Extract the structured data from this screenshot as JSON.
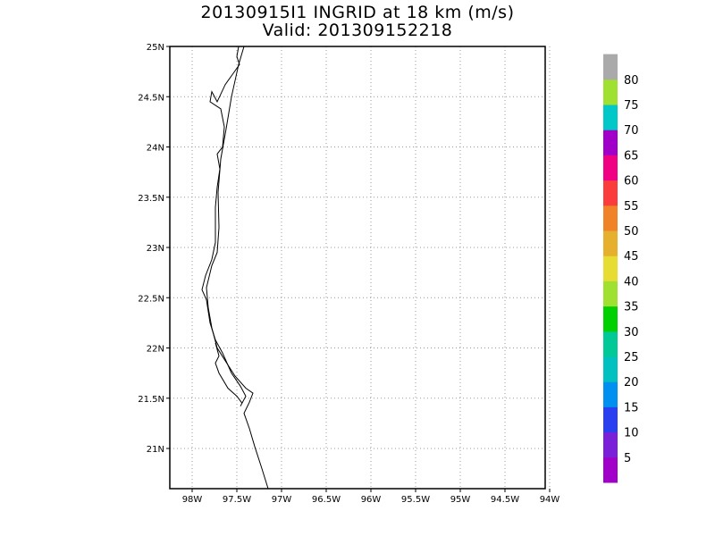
{
  "title": {
    "line1": "20130915I1 INGRID at 18 km (m/s)",
    "line2": "Valid: 201309152218"
  },
  "map": {
    "lat_range": [
      20.6,
      25.0
    ],
    "lon_range": [
      -98.25,
      -94.05
    ],
    "lat_ticks": [
      {
        "value": 25.0,
        "label": "25N"
      },
      {
        "value": 24.5,
        "label": "24.5N"
      },
      {
        "value": 24.0,
        "label": "24N"
      },
      {
        "value": 23.5,
        "label": "23.5N"
      },
      {
        "value": 23.0,
        "label": "23N"
      },
      {
        "value": 22.5,
        "label": "22.5N"
      },
      {
        "value": 22.0,
        "label": "22N"
      },
      {
        "value": 21.5,
        "label": "21.5N"
      },
      {
        "value": 21.0,
        "label": "21N"
      }
    ],
    "lon_ticks": [
      {
        "value": -98.0,
        "label": "98W"
      },
      {
        "value": -97.5,
        "label": "97.5W"
      },
      {
        "value": -97.0,
        "label": "97W"
      },
      {
        "value": -96.5,
        "label": "96.5W"
      },
      {
        "value": -96.0,
        "label": "96W"
      },
      {
        "value": -95.5,
        "label": "95.5W"
      },
      {
        "value": -95.0,
        "label": "95W"
      },
      {
        "value": -94.5,
        "label": "94.5W"
      },
      {
        "value": -94.0,
        "label": "94W"
      }
    ],
    "grid": true,
    "coastline": [
      [
        [
          -97.42,
          25.0
        ],
        [
          -97.48,
          24.82
        ],
        [
          -97.56,
          24.5
        ],
        [
          -97.62,
          24.18
        ],
        [
          -97.68,
          23.88
        ],
        [
          -97.71,
          23.55
        ],
        [
          -97.7,
          23.2
        ],
        [
          -97.72,
          22.95
        ],
        [
          -97.78,
          22.82
        ],
        [
          -97.84,
          22.6
        ],
        [
          -97.82,
          22.4
        ],
        [
          -97.78,
          22.2
        ],
        [
          -97.72,
          22.0
        ],
        [
          -97.62,
          21.86
        ],
        [
          -97.52,
          21.72
        ],
        [
          -97.4,
          21.6
        ],
        [
          -97.32,
          21.55
        ],
        [
          -97.36,
          21.46
        ],
        [
          -97.42,
          21.35
        ],
        [
          -97.36,
          21.2
        ],
        [
          -97.3,
          21.02
        ],
        [
          -97.22,
          20.8
        ],
        [
          -97.15,
          20.6
        ]
      ],
      [
        [
          -97.48,
          25.0
        ],
        [
          -97.5,
          24.9
        ],
        [
          -97.47,
          24.82
        ],
        [
          -97.55,
          24.72
        ],
        [
          -97.63,
          24.62
        ],
        [
          -97.72,
          24.45
        ],
        [
          -97.78,
          24.55
        ],
        [
          -97.8,
          24.45
        ],
        [
          -97.68,
          24.38
        ],
        [
          -97.64,
          24.2
        ],
        [
          -97.66,
          24.0
        ],
        [
          -97.72,
          23.93
        ],
        [
          -97.69,
          23.78
        ],
        [
          -97.72,
          23.6
        ],
        [
          -97.74,
          23.4
        ],
        [
          -97.74,
          23.05
        ],
        [
          -97.78,
          22.88
        ],
        [
          -97.85,
          22.72
        ],
        [
          -97.89,
          22.58
        ],
        [
          -97.84,
          22.48
        ],
        [
          -97.8,
          22.25
        ],
        [
          -97.74,
          22.08
        ],
        [
          -97.66,
          21.95
        ],
        [
          -97.56,
          21.75
        ],
        [
          -97.46,
          21.62
        ],
        [
          -97.4,
          21.52
        ],
        [
          -97.46,
          21.42
        ]
      ],
      [
        [
          -97.74,
          22.05
        ],
        [
          -97.7,
          21.92
        ],
        [
          -97.74,
          21.85
        ],
        [
          -97.7,
          21.75
        ],
        [
          -97.6,
          21.6
        ],
        [
          -97.5,
          21.52
        ],
        [
          -97.44,
          21.45
        ]
      ]
    ]
  },
  "colorbar": {
    "colors": [
      "#a000c8",
      "#7a20d8",
      "#2a40f0",
      "#0090f0",
      "#00c0c0",
      "#00c896",
      "#00d000",
      "#a0e030",
      "#e6dc32",
      "#e6af2d",
      "#f08228",
      "#fa3c3c",
      "#f00082",
      "#a000c8",
      "#00c8c8",
      "#a0e030",
      "#aaaaaa"
    ],
    "labels": [
      "5",
      "10",
      "15",
      "20",
      "25",
      "30",
      "35",
      "40",
      "45",
      "50",
      "55",
      "60",
      "65",
      "70",
      "75",
      "80"
    ]
  }
}
